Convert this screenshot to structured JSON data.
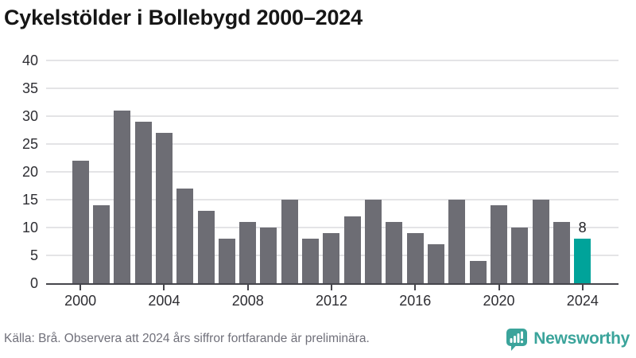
{
  "header": {
    "title": "Cykelstölder i Bollebygd 2000–2024"
  },
  "chart_data": {
    "type": "bar",
    "title": "Cykelstölder i Bollebygd 2000–2024",
    "categories": [
      "2000",
      "2001",
      "2002",
      "2003",
      "2004",
      "2005",
      "2006",
      "2007",
      "2008",
      "2009",
      "2010",
      "2011",
      "2012",
      "2013",
      "2014",
      "2015",
      "2016",
      "2017",
      "2018",
      "2019",
      "2020",
      "2021",
      "2022",
      "2023",
      "2024"
    ],
    "values": [
      22,
      14,
      31,
      29,
      27,
      17,
      13,
      8,
      11,
      10,
      15,
      8,
      9,
      12,
      15,
      11,
      9,
      7,
      15,
      4,
      14,
      10,
      15,
      11,
      8
    ],
    "xlabel": "",
    "ylabel": "",
    "ylim": [
      0,
      40
    ],
    "yticks": [
      0,
      5,
      10,
      15,
      20,
      25,
      30,
      35,
      40
    ],
    "xticks": [
      "2000",
      "2004",
      "2008",
      "2012",
      "2016",
      "2020",
      "2024"
    ],
    "grid": true,
    "legend": false,
    "bar_color": "#6d6d74",
    "highlight_index": 24,
    "highlight_color": "#00a39a",
    "data_labels": [
      {
        "index": 24,
        "text": "8"
      }
    ]
  },
  "footer": {
    "source": "Källa: Brå. Observera att 2024 års siffror fortfarande är preliminära.",
    "brand": "Newsworthy"
  },
  "colors": {
    "title_text": "#161616",
    "axis_line": "#46464c",
    "gridline": "#e4e4e6",
    "tick_text": "#2e2e33",
    "bar_gray": "#6d6d74",
    "accent_teal": "#00a39a",
    "source_text": "#70707a",
    "brand_teal": "#3ba49b"
  }
}
